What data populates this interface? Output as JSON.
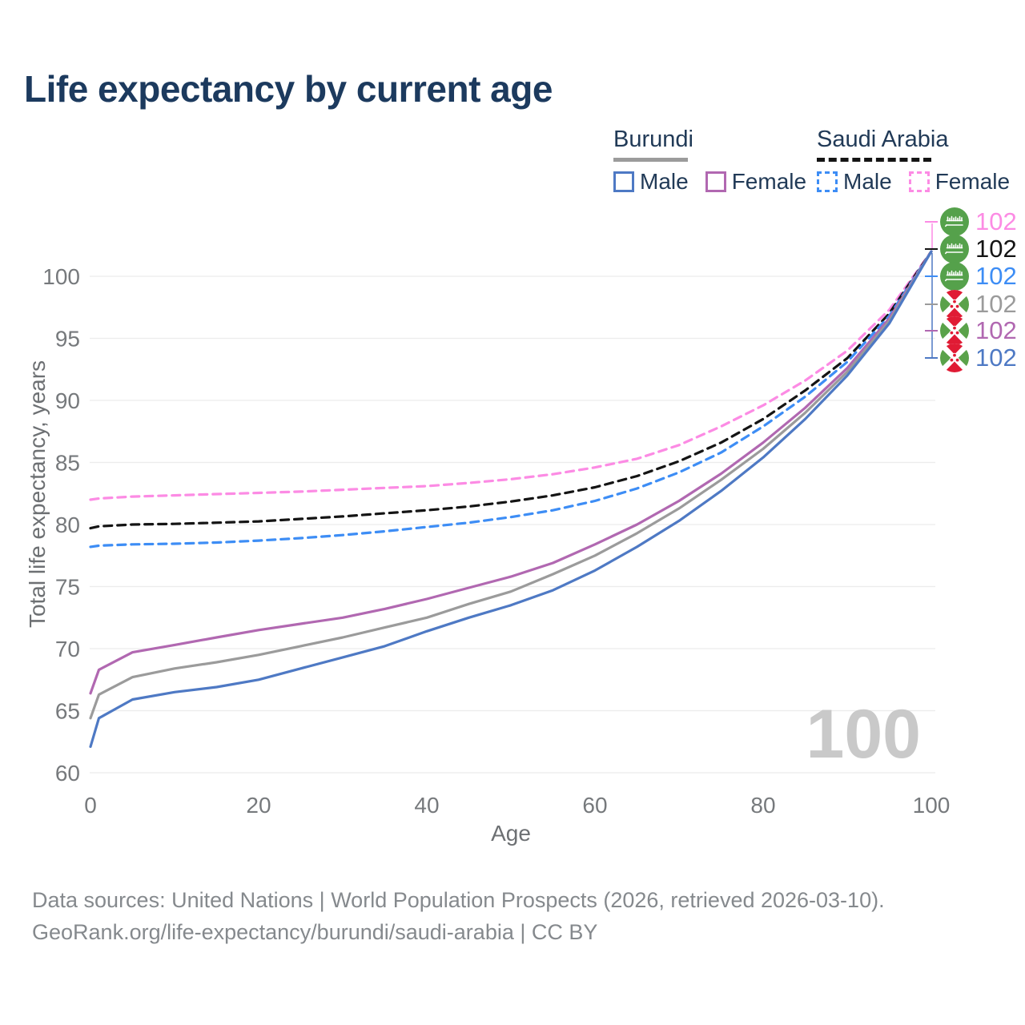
{
  "title": "Life expectancy by current age",
  "legend": {
    "groups": [
      {
        "label": "Burundi",
        "underline_style": "solid",
        "underline_color": "#9b9b9b",
        "items": [
          {
            "label": "Male",
            "color": "#4e79c4",
            "dashed": false
          },
          {
            "label": "Female",
            "color": "#b168b1",
            "dashed": false
          }
        ]
      },
      {
        "label": "Saudi Arabia",
        "underline_style": "dashed",
        "underline_color": "#141414",
        "items": [
          {
            "label": "Male",
            "color": "#3d8df5",
            "dashed": true
          },
          {
            "label": "Female",
            "color": "#fc8be4",
            "dashed": true
          }
        ]
      }
    ]
  },
  "watermark": "100",
  "end_labels": [
    {
      "series": "saudi-female",
      "flag": "saudi-arabia",
      "value": "102",
      "color": "#fc8be4"
    },
    {
      "series": "saudi-both",
      "flag": "saudi-arabia",
      "value": "102",
      "color": "#141414"
    },
    {
      "series": "saudi-male",
      "flag": "saudi-arabia",
      "value": "102",
      "color": "#3d8df5"
    },
    {
      "series": "burundi-both",
      "flag": "burundi",
      "value": "102",
      "color": "#9b9b9b"
    },
    {
      "series": "burundi-female",
      "flag": "burundi",
      "value": "102",
      "color": "#b168b1"
    },
    {
      "series": "burundi-male",
      "flag": "burundi",
      "value": "102",
      "color": "#4e79c4"
    }
  ],
  "footer": {
    "line1": "Data sources: United Nations | World Population Prospects (2026, retrieved 2026-03-10).",
    "line2": "GeoRank.org/life-expectancy/burundi/saudi-arabia | CC BY"
  },
  "chart_data": {
    "type": "line",
    "title": "Life expectancy by current age",
    "xlabel": "Age",
    "ylabel": "Total life expectancy, years",
    "xlim": [
      0,
      100
    ],
    "ylim": [
      60,
      102
    ],
    "x_ticks": [
      0,
      20,
      40,
      60,
      80,
      100
    ],
    "y_ticks": [
      60,
      65,
      70,
      75,
      80,
      85,
      90,
      95,
      100
    ],
    "grid": "horizontal",
    "legend_position": "top-right",
    "x": [
      0,
      1,
      5,
      10,
      15,
      20,
      25,
      30,
      35,
      40,
      45,
      50,
      55,
      60,
      65,
      70,
      75,
      80,
      85,
      90,
      95,
      100
    ],
    "series": [
      {
        "id": "saudi-female",
        "name": "Saudi Arabia Female",
        "country": "Saudi Arabia",
        "sex": "Female",
        "color": "#fc8be4",
        "dashed": true,
        "values": [
          82.0,
          82.1,
          82.25,
          82.35,
          82.45,
          82.55,
          82.65,
          82.8,
          82.95,
          83.1,
          83.35,
          83.65,
          84.05,
          84.6,
          85.3,
          86.4,
          87.9,
          89.6,
          91.6,
          94.0,
          97.3,
          102
        ]
      },
      {
        "id": "saudi-both",
        "name": "Saudi Arabia Both sexes",
        "country": "Saudi Arabia",
        "sex": "Both",
        "color": "#141414",
        "dashed": true,
        "values": [
          79.7,
          79.85,
          80.0,
          80.05,
          80.15,
          80.25,
          80.45,
          80.65,
          80.9,
          81.15,
          81.45,
          81.85,
          82.35,
          83.0,
          83.9,
          85.1,
          86.6,
          88.5,
          90.8,
          93.4,
          97.0,
          102
        ]
      },
      {
        "id": "saudi-male",
        "name": "Saudi Arabia Male",
        "country": "Saudi Arabia",
        "sex": "Male",
        "color": "#3d8df5",
        "dashed": true,
        "values": [
          78.2,
          78.3,
          78.4,
          78.45,
          78.55,
          78.7,
          78.9,
          79.15,
          79.45,
          79.8,
          80.15,
          80.6,
          81.15,
          81.9,
          82.9,
          84.2,
          85.8,
          87.9,
          90.3,
          93.1,
          96.8,
          102
        ]
      },
      {
        "id": "burundi-female",
        "name": "Burundi Female",
        "country": "Burundi",
        "sex": "Female",
        "color": "#b168b1",
        "dashed": false,
        "values": [
          66.4,
          68.3,
          69.7,
          70.3,
          70.9,
          71.5,
          72.0,
          72.5,
          73.2,
          74.0,
          74.9,
          75.8,
          76.9,
          78.4,
          80.0,
          81.9,
          84.1,
          86.6,
          89.4,
          92.6,
          96.6,
          102
        ]
      },
      {
        "id": "burundi-both",
        "name": "Burundi Both sexes",
        "country": "Burundi",
        "sex": "Both",
        "color": "#9b9b9b",
        "dashed": false,
        "values": [
          64.4,
          66.3,
          67.7,
          68.4,
          68.9,
          69.5,
          70.2,
          70.9,
          71.7,
          72.5,
          73.6,
          74.6,
          76.0,
          77.5,
          79.3,
          81.3,
          83.6,
          86.1,
          89.0,
          92.3,
          96.4,
          102
        ]
      },
      {
        "id": "burundi-male",
        "name": "Burundi Male",
        "country": "Burundi",
        "sex": "Male",
        "color": "#4e79c4",
        "dashed": false,
        "values": [
          62.1,
          64.4,
          65.9,
          66.5,
          66.9,
          67.5,
          68.4,
          69.3,
          70.2,
          71.4,
          72.5,
          73.5,
          74.7,
          76.3,
          78.2,
          80.3,
          82.7,
          85.4,
          88.5,
          92.0,
          96.2,
          102
        ]
      }
    ]
  }
}
